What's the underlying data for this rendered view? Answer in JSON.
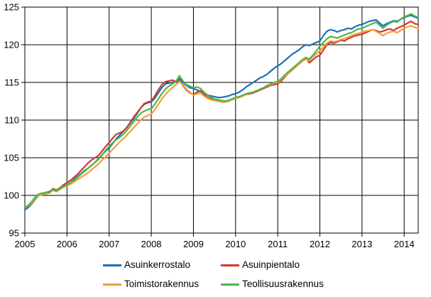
{
  "chart_data": {
    "type": "line",
    "title": "",
    "xlabel": "",
    "ylabel": "",
    "x_unit": "month",
    "x_start": "2005-01",
    "x_end": "2014-05",
    "x_tick_labels": [
      "2005",
      "2006",
      "2007",
      "2008",
      "2009",
      "2010",
      "2011",
      "2012",
      "2013",
      "2014"
    ],
    "y_ticks": [
      95,
      100,
      105,
      110,
      115,
      120,
      125
    ],
    "ylim": [
      95,
      125
    ],
    "grid": true,
    "axis_color": "#000000",
    "legend_position": "bottom-two-columns",
    "series": [
      {
        "name": "Asuinkerrostalo",
        "color": "#1E6FB8",
        "values": [
          98.1,
          98.4,
          98.9,
          99.5,
          100.0,
          100.2,
          100.4,
          100.5,
          100.8,
          100.7,
          100.9,
          101.2,
          101.4,
          101.7,
          102.1,
          102.5,
          102.9,
          103.3,
          103.6,
          104.0,
          104.4,
          104.9,
          105.4,
          105.9,
          106.3,
          106.9,
          107.5,
          108.0,
          108.5,
          109.0,
          109.6,
          110.2,
          110.9,
          111.6,
          112.1,
          112.3,
          112.4,
          112.9,
          113.6,
          114.3,
          114.8,
          114.9,
          115.0,
          115.1,
          115.5,
          115.0,
          114.6,
          114.3,
          114.2,
          114.0,
          113.8,
          113.5,
          113.3,
          113.2,
          113.1,
          113.0,
          113.0,
          113.1,
          113.2,
          113.4,
          113.5,
          113.7,
          114.0,
          114.4,
          114.7,
          115.0,
          115.3,
          115.6,
          115.8,
          116.1,
          116.5,
          116.9,
          117.2,
          117.5,
          117.9,
          118.3,
          118.7,
          119.0,
          119.3,
          119.7,
          120.0,
          119.9,
          120.1,
          120.3,
          120.5,
          121.2,
          121.8,
          122.0,
          121.9,
          121.7,
          121.9,
          122.0,
          122.2,
          122.1,
          122.4,
          122.6,
          122.7,
          122.9,
          123.1,
          123.2,
          123.3,
          122.9,
          122.5,
          122.8,
          123.0,
          123.2,
          123.1,
          123.4,
          123.6,
          123.8,
          123.9,
          123.7,
          123.5
        ]
      },
      {
        "name": "Asuinpientalo",
        "color": "#D13832",
        "values": [
          98.4,
          98.6,
          99.1,
          99.7,
          100.1,
          100.2,
          100.3,
          100.4,
          100.9,
          100.7,
          101.0,
          101.4,
          101.7,
          102.0,
          102.4,
          102.8,
          103.3,
          103.8,
          104.3,
          104.7,
          105.0,
          105.3,
          105.9,
          106.5,
          107.0,
          107.6,
          108.1,
          108.3,
          108.5,
          109.0,
          109.7,
          110.4,
          111.0,
          111.6,
          112.2,
          112.4,
          112.5,
          113.2,
          114.0,
          114.7,
          115.1,
          115.2,
          115.3,
          115.1,
          115.2,
          114.6,
          114.0,
          113.6,
          113.4,
          113.7,
          113.9,
          113.4,
          113.0,
          112.8,
          112.7,
          112.6,
          112.5,
          112.5,
          112.6,
          112.8,
          112.9,
          113.0,
          113.2,
          113.4,
          113.5,
          113.6,
          113.8,
          114.0,
          114.2,
          114.4,
          114.6,
          114.7,
          114.8,
          115.2,
          115.7,
          116.2,
          116.6,
          117.0,
          117.5,
          118.0,
          118.3,
          117.6,
          118.0,
          118.4,
          118.6,
          119.3,
          120.0,
          120.3,
          120.2,
          120.4,
          120.6,
          120.5,
          120.8,
          121.0,
          121.2,
          121.3,
          121.4,
          121.6,
          121.8,
          122.0,
          121.9,
          121.7,
          121.8,
          122.0,
          122.1,
          121.9,
          122.2,
          122.4,
          122.6,
          122.9,
          123.1,
          122.8,
          122.7
        ]
      },
      {
        "name": "Toimistorakennus",
        "color": "#F59C3C",
        "values": [
          98.4,
          98.6,
          99.0,
          99.6,
          100.0,
          100.1,
          100.2,
          100.3,
          100.7,
          100.5,
          100.8,
          101.1,
          101.3,
          101.5,
          101.8,
          102.1,
          102.4,
          102.7,
          103.0,
          103.4,
          103.8,
          104.2,
          104.7,
          105.1,
          105.6,
          106.1,
          106.6,
          107.1,
          107.5,
          108.0,
          108.5,
          109.0,
          109.5,
          110.0,
          110.4,
          110.6,
          110.8,
          111.4,
          112.1,
          112.8,
          113.4,
          113.9,
          114.3,
          114.7,
          115.1,
          114.7,
          114.1,
          113.7,
          113.3,
          113.5,
          113.6,
          113.2,
          112.9,
          112.7,
          112.6,
          112.5,
          112.4,
          112.4,
          112.5,
          112.7,
          112.9,
          113.0,
          113.2,
          113.4,
          113.6,
          113.7,
          113.9,
          114.1,
          114.3,
          114.5,
          114.7,
          114.9,
          115.0,
          115.4,
          115.8,
          116.2,
          116.6,
          117.0,
          117.4,
          117.8,
          118.1,
          117.9,
          118.4,
          118.8,
          119.2,
          119.7,
          120.2,
          120.5,
          120.4,
          120.5,
          120.7,
          120.8,
          121.0,
          121.2,
          121.4,
          121.5,
          121.7,
          121.8,
          121.9,
          122.0,
          121.8,
          121.5,
          121.2,
          121.5,
          121.7,
          121.8,
          121.6,
          121.9,
          122.2,
          122.4,
          122.5,
          122.3,
          122.2
        ]
      },
      {
        "name": "Teollisuusrakennus",
        "color": "#4DB74A",
        "values": [
          98.4,
          98.7,
          99.2,
          99.8,
          100.2,
          100.3,
          100.4,
          100.4,
          100.8,
          100.6,
          100.9,
          101.2,
          101.4,
          101.7,
          102.0,
          102.4,
          102.8,
          103.2,
          103.6,
          104.0,
          104.4,
          104.8,
          105.4,
          106.0,
          106.5,
          107.0,
          107.4,
          107.7,
          108.1,
          108.6,
          109.2,
          109.8,
          110.4,
          110.9,
          111.2,
          111.4,
          111.5,
          112.1,
          112.8,
          113.5,
          114.1,
          114.5,
          114.8,
          115.1,
          115.9,
          115.2,
          114.7,
          114.5,
          114.3,
          114.4,
          114.2,
          113.7,
          113.3,
          113.0,
          112.8,
          112.7,
          112.6,
          112.5,
          112.6,
          112.8,
          113.0,
          113.1,
          113.3,
          113.5,
          113.6,
          113.7,
          113.9,
          114.1,
          114.3,
          114.6,
          114.8,
          115.0,
          115.1,
          115.5,
          116.0,
          116.4,
          116.8,
          117.2,
          117.6,
          118.0,
          118.3,
          118.1,
          118.6,
          119.2,
          119.8,
          120.3,
          120.8,
          121.1,
          121.0,
          120.9,
          121.1,
          121.3,
          121.5,
          121.6,
          121.9,
          122.1,
          122.2,
          122.4,
          122.6,
          122.8,
          123.0,
          122.6,
          122.2,
          122.6,
          122.9,
          123.1,
          123.0,
          123.4,
          123.7,
          123.9,
          124.1,
          123.8,
          123.6
        ]
      }
    ]
  }
}
